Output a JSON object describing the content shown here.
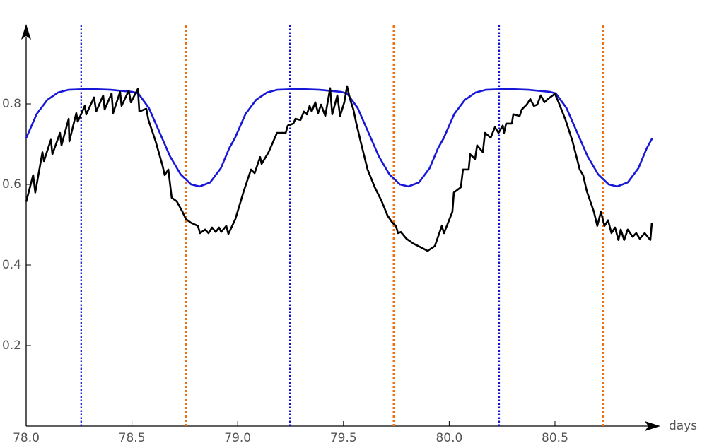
{
  "chart_data": {
    "type": "line",
    "x_label": "days",
    "xlim": [
      78,
      80.98
    ],
    "ylim": [
      0,
      0.99
    ],
    "xticks": [
      {
        "value": 78,
        "label": "78.0"
      },
      {
        "value": 78.5,
        "label": "78.5"
      },
      {
        "value": 79,
        "label": "79.0"
      },
      {
        "value": 79.5,
        "label": "79.5"
      },
      {
        "value": 80,
        "label": "80.0"
      },
      {
        "value": 80.5,
        "label": "80.5"
      }
    ],
    "yticks": [
      0.2,
      0.4,
      0.6,
      0.8
    ],
    "vlines": [
      {
        "x": 78.26,
        "color": "#1010d0"
      },
      {
        "x": 78.755,
        "color": "#f07010"
      },
      {
        "x": 79.247,
        "color": "#1010d0"
      },
      {
        "x": 79.738,
        "color": "#f07010"
      },
      {
        "x": 80.236,
        "color": "#1010d0"
      },
      {
        "x": 80.727,
        "color": "#f07010"
      }
    ],
    "series": [
      {
        "color": "#1717d8",
        "x": [
          78.0,
          78.05,
          78.1,
          78.15,
          78.2,
          78.3,
          78.4,
          78.5,
          78.53,
          78.58,
          78.63,
          78.68,
          78.73,
          78.78,
          78.82,
          78.87,
          78.92,
          78.96,
          78.987,
          79.037,
          79.087,
          79.137,
          79.187,
          79.287,
          79.387,
          79.487,
          79.517,
          79.567,
          79.617,
          79.667,
          79.717,
          79.767,
          79.807,
          79.857,
          79.907,
          79.947,
          79.974,
          80.024,
          80.074,
          80.124,
          80.174,
          80.274,
          80.374,
          80.474,
          80.504,
          80.554,
          80.604,
          80.654,
          80.704,
          80.754,
          80.794,
          80.844,
          80.894,
          80.934,
          80.96
        ],
        "values": [
          0.715,
          0.775,
          0.81,
          0.828,
          0.835,
          0.837,
          0.835,
          0.83,
          0.826,
          0.79,
          0.73,
          0.67,
          0.625,
          0.6,
          0.595,
          0.605,
          0.64,
          0.69,
          0.715,
          0.775,
          0.81,
          0.828,
          0.835,
          0.837,
          0.835,
          0.83,
          0.826,
          0.79,
          0.73,
          0.67,
          0.625,
          0.6,
          0.595,
          0.605,
          0.64,
          0.69,
          0.715,
          0.775,
          0.81,
          0.828,
          0.835,
          0.837,
          0.835,
          0.83,
          0.826,
          0.79,
          0.73,
          0.67,
          0.625,
          0.6,
          0.595,
          0.605,
          0.64,
          0.69,
          0.715
        ]
      },
      {
        "color": "#000000",
        "x": [
          78.0,
          78.033,
          78.043,
          78.077,
          78.084,
          78.117,
          78.124,
          78.16,
          78.167,
          78.201,
          78.204,
          78.237,
          78.244,
          78.277,
          78.284,
          78.321,
          78.331,
          78.364,
          78.371,
          78.404,
          78.411,
          78.444,
          78.451,
          78.485,
          78.495,
          78.528,
          78.535,
          78.568,
          78.578,
          78.612,
          78.645,
          78.655,
          78.672,
          78.688,
          78.712,
          78.739,
          78.755,
          78.779,
          78.812,
          78.822,
          78.846,
          78.862,
          78.879,
          78.896,
          78.912,
          78.922,
          78.946,
          78.956,
          78.989,
          79.029,
          79.063,
          79.08,
          79.106,
          79.113,
          79.146,
          79.186,
          79.227,
          79.237,
          79.263,
          79.273,
          79.297,
          79.313,
          79.327,
          79.34,
          79.35,
          79.367,
          79.38,
          79.394,
          79.414,
          79.437,
          79.447,
          79.471,
          79.484,
          79.504,
          79.517,
          79.531,
          79.547,
          79.561,
          79.581,
          79.614,
          79.648,
          79.681,
          79.708,
          79.731,
          79.748,
          79.758,
          79.771,
          79.798,
          79.831,
          79.865,
          79.898,
          79.932,
          79.965,
          79.975,
          80.015,
          80.022,
          80.055,
          80.065,
          80.092,
          80.099,
          80.122,
          80.132,
          80.159,
          80.169,
          80.196,
          80.216,
          80.233,
          80.253,
          80.259,
          80.269,
          80.296,
          80.303,
          80.333,
          80.343,
          80.366,
          80.383,
          80.4,
          80.416,
          80.433,
          80.45,
          80.466,
          80.5,
          80.517,
          80.55,
          80.583,
          80.617,
          80.633,
          80.65,
          80.667,
          80.684,
          80.7,
          80.717,
          80.734,
          80.751,
          80.767,
          80.784,
          80.8,
          80.811,
          80.827,
          80.844,
          80.867,
          80.884,
          80.901,
          80.924,
          80.951,
          80.958
        ],
        "values": [
          0.557,
          0.623,
          0.58,
          0.68,
          0.658,
          0.711,
          0.675,
          0.728,
          0.697,
          0.763,
          0.707,
          0.777,
          0.756,
          0.795,
          0.774,
          0.816,
          0.781,
          0.821,
          0.786,
          0.826,
          0.777,
          0.83,
          0.795,
          0.833,
          0.804,
          0.837,
          0.781,
          0.788,
          0.76,
          0.707,
          0.646,
          0.623,
          0.637,
          0.567,
          0.558,
          0.532,
          0.514,
          0.505,
          0.497,
          0.479,
          0.488,
          0.479,
          0.493,
          0.482,
          0.493,
          0.482,
          0.497,
          0.477,
          0.514,
          0.584,
          0.637,
          0.628,
          0.668,
          0.651,
          0.68,
          0.728,
          0.728,
          0.746,
          0.751,
          0.763,
          0.76,
          0.781,
          0.774,
          0.795,
          0.781,
          0.804,
          0.777,
          0.798,
          0.77,
          0.839,
          0.774,
          0.821,
          0.77,
          0.804,
          0.844,
          0.812,
          0.786,
          0.751,
          0.707,
          0.637,
          0.593,
          0.558,
          0.523,
          0.505,
          0.497,
          0.479,
          0.482,
          0.465,
          0.453,
          0.444,
          0.435,
          0.447,
          0.497,
          0.479,
          0.532,
          0.58,
          0.593,
          0.637,
          0.637,
          0.675,
          0.663,
          0.697,
          0.68,
          0.728,
          0.716,
          0.742,
          0.728,
          0.746,
          0.728,
          0.751,
          0.751,
          0.774,
          0.77,
          0.786,
          0.798,
          0.812,
          0.795,
          0.798,
          0.821,
          0.804,
          0.812,
          0.825,
          0.804,
          0.76,
          0.707,
          0.637,
          0.623,
          0.584,
          0.558,
          0.532,
          0.497,
          0.532,
          0.497,
          0.511,
          0.479,
          0.493,
          0.462,
          0.488,
          0.462,
          0.488,
          0.47,
          0.479,
          0.465,
          0.479,
          0.462,
          0.505
        ]
      }
    ]
  }
}
